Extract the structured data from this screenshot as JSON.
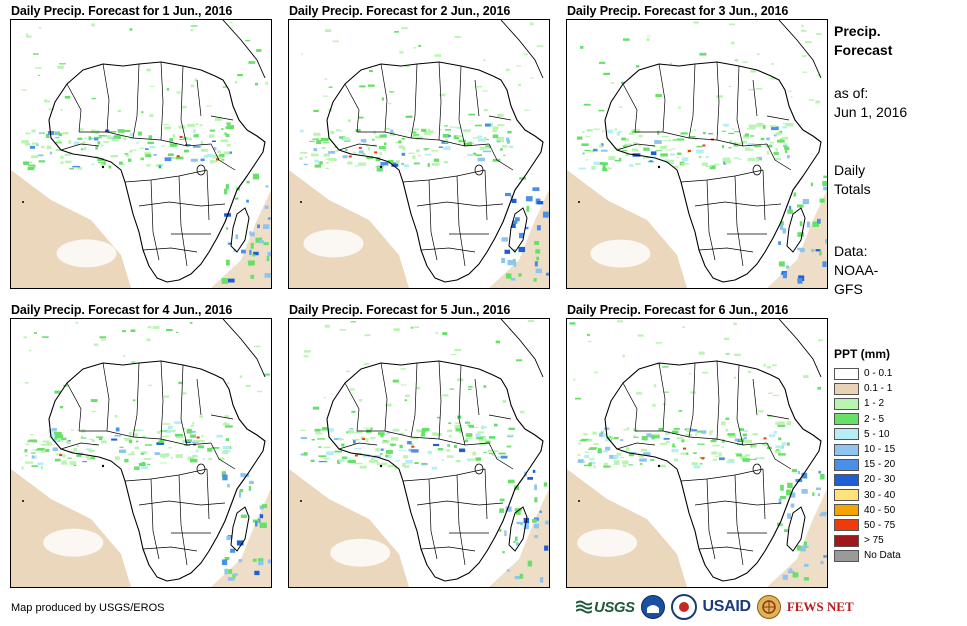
{
  "panels": [
    {
      "title": "Daily Precip. Forecast for 1 Jun., 2016"
    },
    {
      "title": "Daily Precip. Forecast for 2 Jun., 2016"
    },
    {
      "title": "Daily Precip. Forecast for 3 Jun., 2016"
    },
    {
      "title": "Daily Precip. Forecast for 4 Jun., 2016"
    },
    {
      "title": "Daily Precip. Forecast for 5 Jun., 2016"
    },
    {
      "title": "Daily Precip. Forecast for 6 Jun., 2016"
    }
  ],
  "sidebar": {
    "title_line1": "Precip.",
    "title_line2": "Forecast",
    "asof_label": "as of:",
    "asof_date": "Jun 1, 2016",
    "totals_line1": "Daily",
    "totals_line2": "Totals",
    "data_line1": "Data:",
    "data_line2": "NOAA-",
    "data_line3": "GFS"
  },
  "legend": {
    "title": "PPT (mm)",
    "items": [
      {
        "label": "0 - 0.1",
        "color": "#ffffff"
      },
      {
        "label": "0.1 - 1",
        "color": "#e8d3b5"
      },
      {
        "label": "1 - 2",
        "color": "#b9f5b0"
      },
      {
        "label": "2 - 5",
        "color": "#66e066"
      },
      {
        "label": "5 - 10",
        "color": "#b5eef5"
      },
      {
        "label": "10 - 15",
        "color": "#8fc3f0"
      },
      {
        "label": "15 - 20",
        "color": "#4a8fe8"
      },
      {
        "label": "20 - 30",
        "color": "#1f5fd6"
      },
      {
        "label": "30 - 40",
        "color": "#ffe37a"
      },
      {
        "label": "40 - 50",
        "color": "#f5a300"
      },
      {
        "label": "50 - 75",
        "color": "#f03a0a"
      },
      {
        "label": "> 75",
        "color": "#a01818"
      },
      {
        "label": "No Data",
        "color": "#9a9a9a"
      }
    ]
  },
  "footer": {
    "credit": "Map produced by USGS/EROS",
    "logo_usgs": "USGS",
    "logo_usaid": "USAID",
    "logo_fews": "FEWS NET"
  }
}
